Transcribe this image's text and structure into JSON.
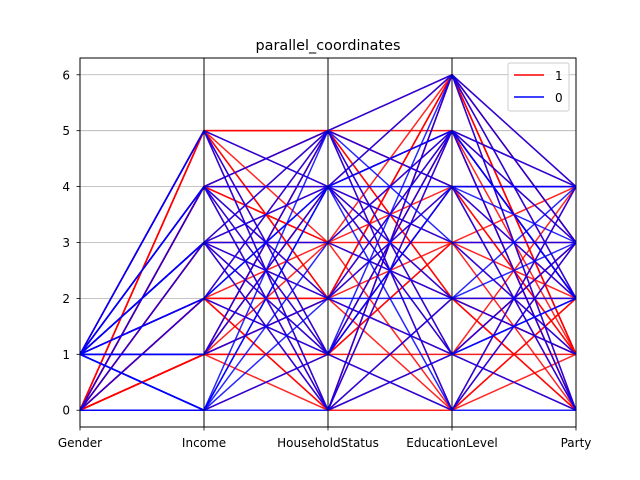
{
  "chart_data": {
    "type": "parallel_coordinates",
    "title": "parallel_coordinates",
    "xlabel": "",
    "ylabel": "",
    "axes": [
      "Gender",
      "Income",
      "HouseholdStatus",
      "EducationLevel",
      "Party"
    ],
    "yticks": [
      "0",
      "1",
      "2",
      "3",
      "4",
      "5",
      "6"
    ],
    "ylim": [
      -0.3,
      6.3
    ],
    "grid": {
      "horizontal": true,
      "vertical_axes": true
    },
    "legend": {
      "placement": "top-right",
      "entries": [
        {
          "label": "1",
          "color": "#ff0000"
        },
        {
          "label": "0",
          "color": "#0000ff"
        }
      ]
    },
    "series": [
      {
        "name": "1",
        "color": "#ff0000",
        "values": [
          [
            0,
            5,
            5,
            6,
            4
          ],
          [
            1,
            5,
            0,
            6,
            3
          ],
          [
            0,
            4,
            5,
            5,
            4
          ],
          [
            0,
            4,
            2,
            6,
            0
          ],
          [
            1,
            5,
            2,
            6,
            1
          ],
          [
            0,
            3,
            0,
            5,
            0
          ],
          [
            0,
            2,
            5,
            4,
            2
          ],
          [
            1,
            4,
            3,
            6,
            2
          ],
          [
            0,
            1,
            4,
            3,
            3
          ],
          [
            0,
            2,
            1,
            5,
            1
          ],
          [
            0,
            1,
            2,
            0,
            4
          ],
          [
            1,
            2,
            0,
            2,
            1
          ],
          [
            0,
            5,
            1,
            4,
            0
          ],
          [
            0,
            3,
            4,
            1,
            3
          ],
          [
            1,
            3,
            3,
            2,
            0
          ],
          [
            0,
            1,
            1,
            1,
            1
          ],
          [
            0,
            4,
            1,
            0,
            1
          ],
          [
            1,
            1,
            5,
            2,
            2
          ],
          [
            0,
            2,
            3,
            3,
            4
          ],
          [
            0,
            5,
            4,
            5,
            3
          ],
          [
            1,
            4,
            4,
            6,
            1
          ],
          [
            0,
            2,
            2,
            4,
            1
          ],
          [
            0,
            1,
            0,
            6,
            3
          ],
          [
            0,
            3,
            5,
            0,
            2
          ],
          [
            1,
            5,
            3,
            5,
            2
          ],
          [
            0,
            1,
            3,
            4,
            4
          ],
          [
            0,
            0,
            1,
            3,
            1
          ],
          [
            0,
            4,
            0,
            1,
            0
          ],
          [
            1,
            2,
            2,
            1,
            3
          ],
          [
            0,
            1,
            1,
            5,
            2
          ],
          [
            0,
            4,
            5,
            2,
            1
          ],
          [
            0,
            3,
            1,
            3,
            0
          ],
          [
            1,
            5,
            5,
            4,
            1
          ],
          [
            0,
            1,
            5,
            1,
            4
          ],
          [
            0,
            2,
            0,
            0,
            3
          ],
          [
            0,
            5,
            2,
            3,
            2
          ],
          [
            1,
            3,
            2,
            5,
            0
          ],
          [
            0,
            1,
            4,
            2,
            0
          ],
          [
            0,
            4,
            3,
            0,
            2
          ],
          [
            0,
            1,
            2,
            6,
            1
          ]
        ]
      },
      {
        "name": "0",
        "color": "#0000ff",
        "values": [
          [
            1,
            0,
            4,
            6,
            2
          ],
          [
            1,
            1,
            5,
            6,
            4
          ],
          [
            1,
            4,
            1,
            5,
            3
          ],
          [
            1,
            3,
            0,
            6,
            0
          ],
          [
            1,
            2,
            4,
            5,
            2
          ],
          [
            0,
            0,
            5,
            0,
            4
          ],
          [
            1,
            5,
            4,
            3,
            1
          ],
          [
            1,
            4,
            2,
            4,
            3
          ],
          [
            0,
            3,
            5,
            1,
            0
          ],
          [
            1,
            0,
            3,
            2,
            3
          ],
          [
            1,
            2,
            1,
            4,
            2
          ],
          [
            1,
            3,
            4,
            5,
            0
          ],
          [
            0,
            4,
            0,
            2,
            2
          ],
          [
            1,
            0,
            0,
            1,
            3
          ],
          [
            1,
            3,
            3,
            5,
            4
          ],
          [
            1,
            1,
            4,
            0,
            3
          ],
          [
            1,
            5,
            1,
            4,
            4
          ],
          [
            0,
            2,
            4,
            2,
            1
          ],
          [
            1,
            0,
            2,
            5,
            2
          ],
          [
            1,
            4,
            5,
            4,
            0
          ],
          [
            1,
            3,
            1,
            6,
            3
          ],
          [
            1,
            1,
            2,
            1,
            2
          ],
          [
            0,
            0,
            4,
            4,
            4
          ],
          [
            1,
            2,
            5,
            3,
            3
          ],
          [
            1,
            5,
            0,
            5,
            2
          ],
          [
            1,
            3,
            2,
            2,
            4
          ],
          [
            1,
            0,
            1,
            0,
            0
          ],
          [
            1,
            4,
            4,
            1,
            2
          ]
        ]
      }
    ]
  }
}
